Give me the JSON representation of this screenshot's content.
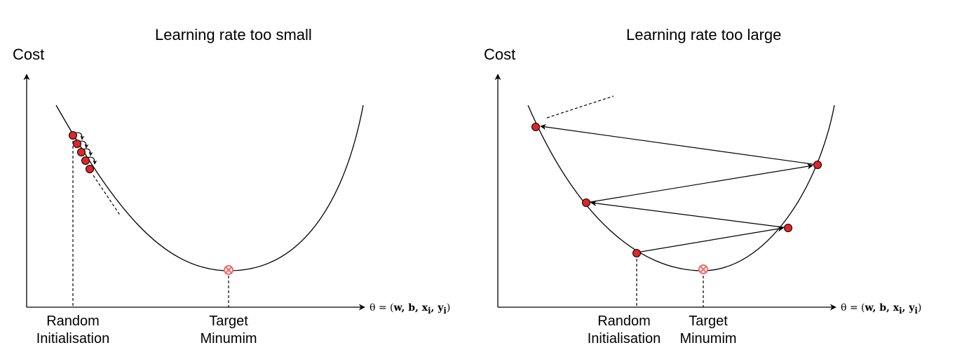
{
  "colors": {
    "point_fill": "#e32424",
    "point_stroke": "#8b0000",
    "minimum_marker": "#f06a6a",
    "line": "#000000"
  },
  "panels": [
    {
      "title": "Learning rate too small",
      "y_axis_label": "Cost",
      "x_axis_label": {
        "prefix": "θ = (",
        "vars": "w, b, x",
        "sub_i1": "i",
        "mid": ", y",
        "sub_i2": "i",
        "suffix": ")"
      },
      "random_init_label": [
        "Random",
        "Initialisation"
      ],
      "target_label": [
        "Target",
        "Minumim"
      ],
      "gradient_steps": 5
    },
    {
      "title": "Learning rate too large",
      "y_axis_label": "Cost",
      "x_axis_label": {
        "prefix": "θ = (",
        "vars": "w, b, x",
        "sub_i1": "i",
        "mid": ", y",
        "sub_i2": "i",
        "suffix": ")"
      },
      "random_init_label": [
        "Random",
        "Initialisation"
      ],
      "target_label": [
        "Target",
        "Minumim"
      ],
      "gradient_steps": 5
    }
  ]
}
